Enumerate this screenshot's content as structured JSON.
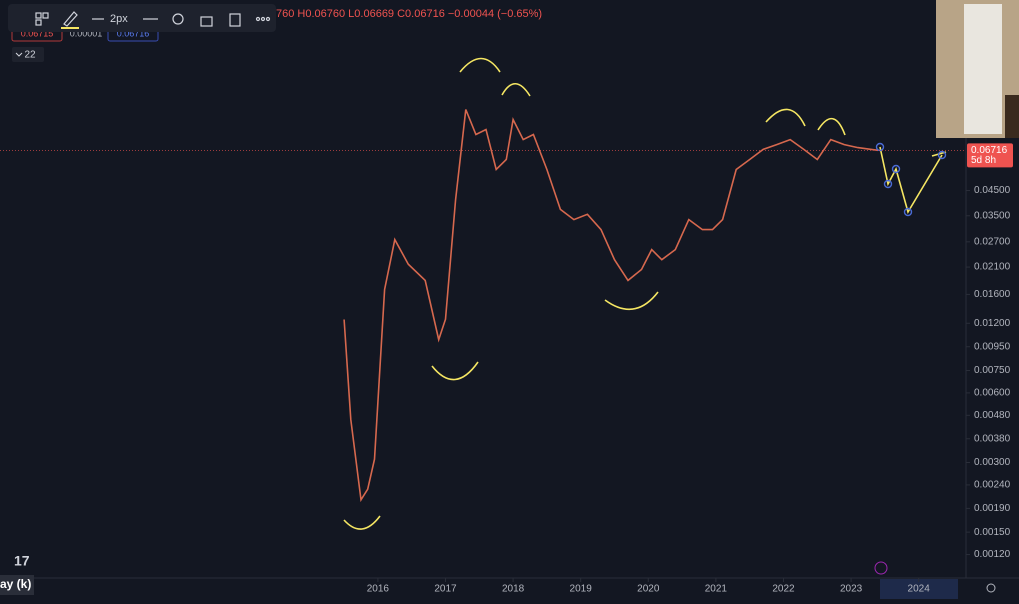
{
  "toolbar": {
    "width_label": "2px"
  },
  "header": {
    "ohlc": "760 H0.06760 L0.06669 C0.06716 −0.00044 (−0.65%)",
    "bid": "0.06715",
    "spread": "0.00001",
    "ask": "0.06716",
    "collapse": "22"
  },
  "price_badge": {
    "value": 0.06716,
    "label": "0.06716",
    "countdown": "5d 8h"
  },
  "footer": {
    "left_label": "ay (k)"
  },
  "chart_data": {
    "type": "line",
    "log_scale": true,
    "color": "#d6684e",
    "x": [
      2015.5,
      2015.6,
      2015.75,
      2015.85,
      2015.95,
      2016.1,
      2016.25,
      2016.45,
      2016.7,
      2016.9,
      2017.0,
      2017.15,
      2017.3,
      2017.45,
      2017.6,
      2017.75,
      2017.9,
      2018.0,
      2018.15,
      2018.3,
      2018.5,
      2018.7,
      2018.9,
      2019.1,
      2019.3,
      2019.5,
      2019.7,
      2019.9,
      2020.05,
      2020.2,
      2020.4,
      2020.6,
      2020.8,
      2020.95,
      2021.1,
      2021.3,
      2021.5,
      2021.7,
      2021.9,
      2022.1,
      2022.3,
      2022.5,
      2022.7,
      2022.9,
      2023.1,
      2023.3,
      2023.4
    ],
    "values": [
      0.01246,
      0.0046,
      0.00207,
      0.0023,
      0.0031,
      0.0168,
      0.0276,
      0.0216,
      0.0184,
      0.0102,
      0.0125,
      0.0411,
      0.1008,
      0.0786,
      0.0826,
      0.0555,
      0.0613,
      0.0913,
      0.0747,
      0.0786,
      0.0555,
      0.0373,
      0.0337,
      0.0355,
      0.0305,
      0.0226,
      0.0184,
      0.0205,
      0.025,
      0.0226,
      0.025,
      0.0337,
      0.0305,
      0.0305,
      0.0337,
      0.0555,
      0.0613,
      0.0678,
      0.0711,
      0.0747,
      0.0678,
      0.0613,
      0.0747,
      0.0711,
      0.069,
      0.0678,
      0.06716
    ],
    "xlim": [
      2010.41,
      2024.7
    ],
    "xticks": [
      2016,
      2017,
      2018,
      2019,
      2020,
      2021,
      2022,
      2023,
      2024
    ],
    "ylim": [
      0.00095,
      0.3
    ],
    "yticks": [
      {
        "value": 0.045,
        "label": "0.04500"
      },
      {
        "value": 0.035,
        "label": "0.03500"
      },
      {
        "value": 0.027,
        "label": "0.02700"
      },
      {
        "value": 0.021,
        "label": "0.02100"
      },
      {
        "value": 0.016,
        "label": "0.01600"
      },
      {
        "value": 0.012,
        "label": "0.01200"
      },
      {
        "value": 0.0095,
        "label": "0.00950"
      },
      {
        "value": 0.0075,
        "label": "0.00750"
      },
      {
        "value": 0.006,
        "label": "0.00600"
      },
      {
        "value": 0.0048,
        "label": "0.00480"
      },
      {
        "value": 0.0038,
        "label": "0.00380"
      },
      {
        "value": 0.003,
        "label": "0.00300"
      },
      {
        "value": 0.0024,
        "label": "0.00240"
      },
      {
        "value": 0.0019,
        "label": "0.00190"
      },
      {
        "value": 0.0015,
        "label": "0.00150"
      },
      {
        "value": 0.0012,
        "label": "0.00120"
      }
    ]
  }
}
